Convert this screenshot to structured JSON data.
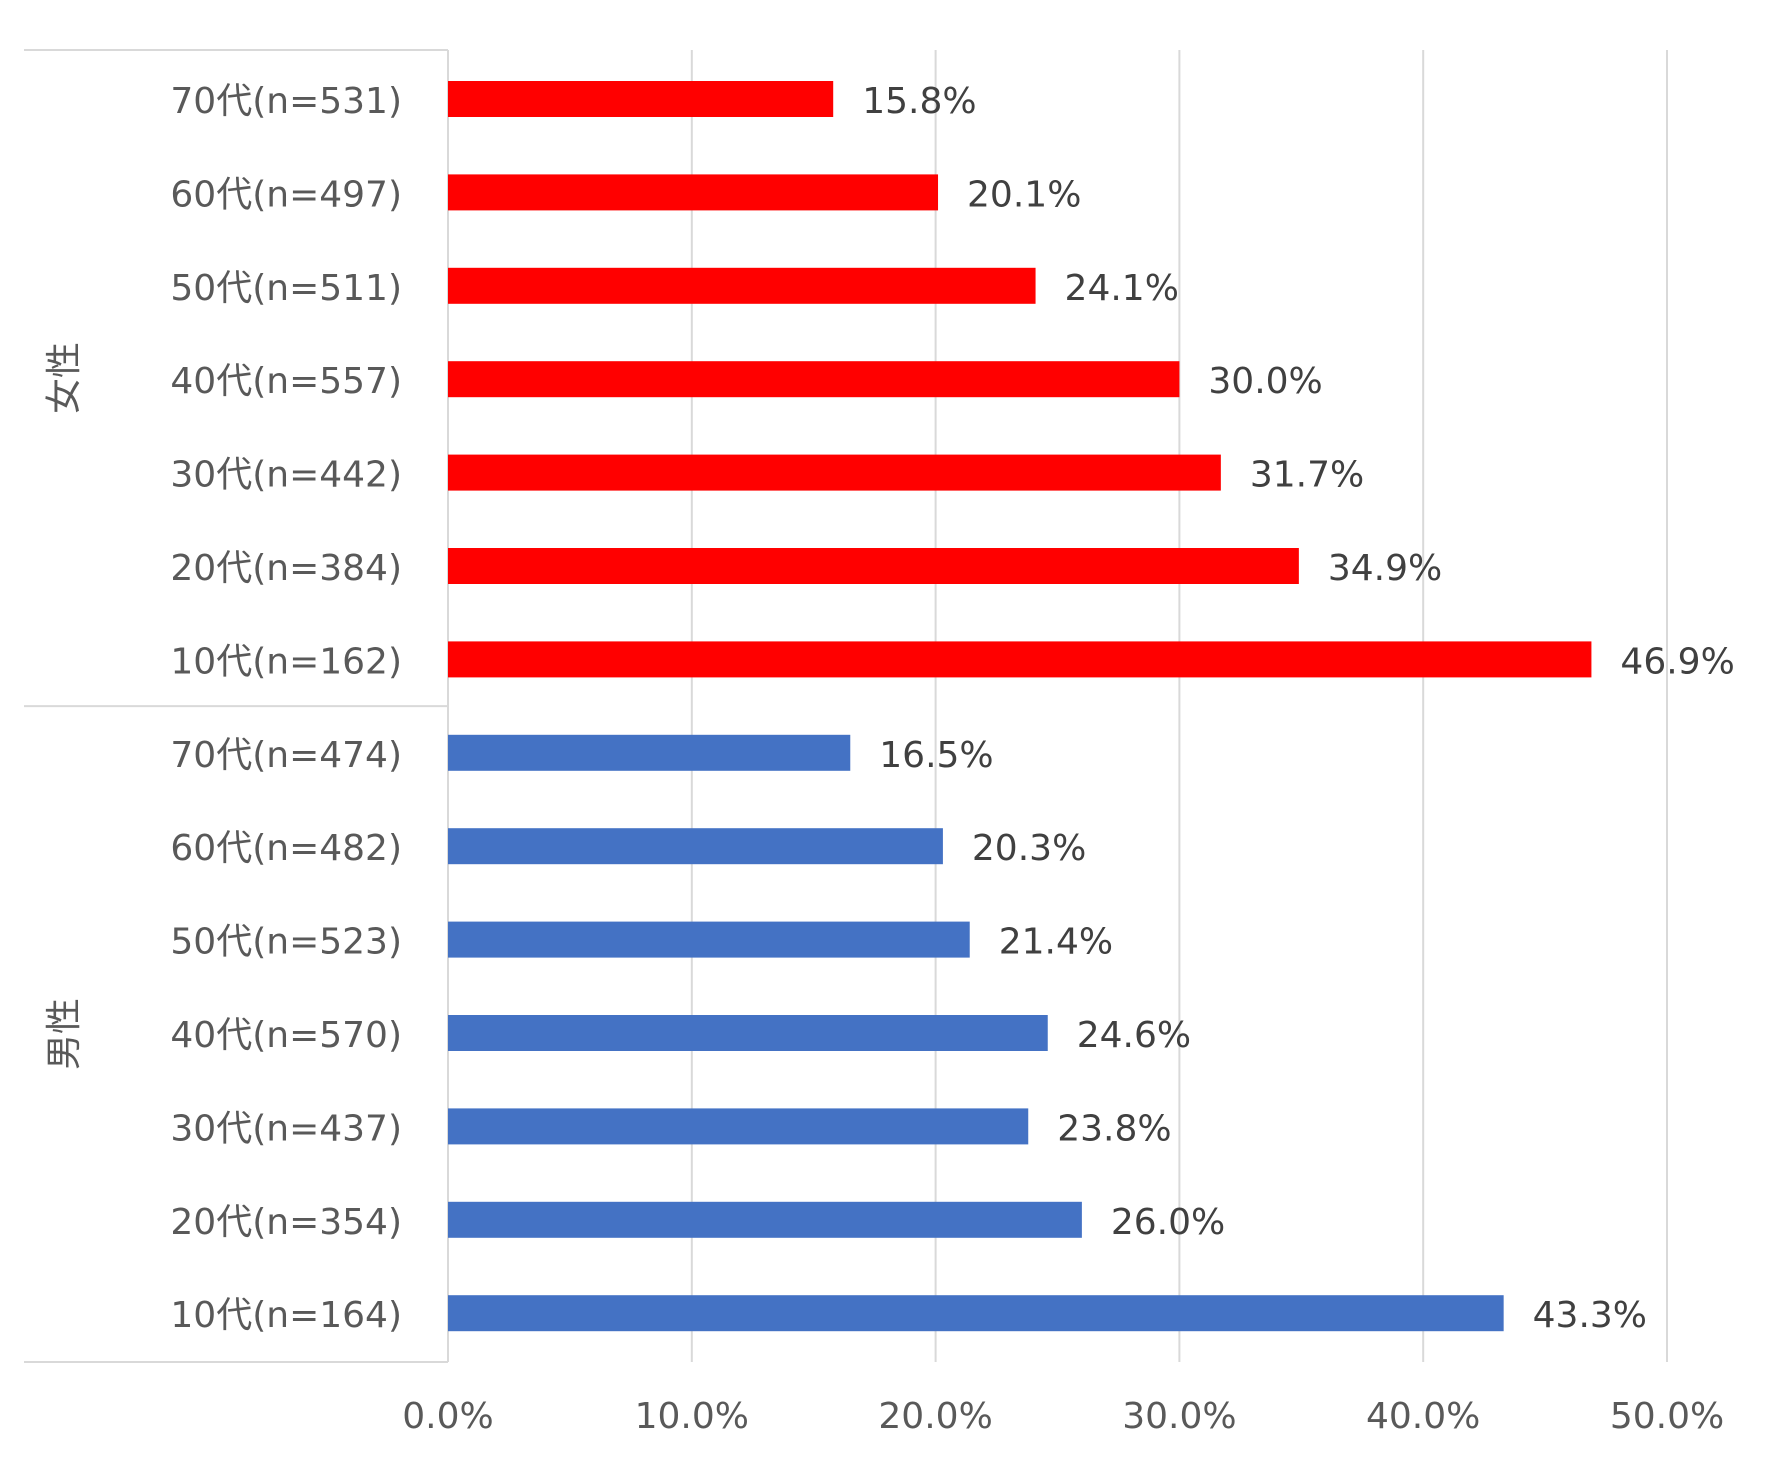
{
  "chart_data": {
    "type": "bar",
    "orientation": "horizontal",
    "title": "",
    "xlabel": "",
    "ylabel": "",
    "xlim": [
      0,
      50
    ],
    "x_ticks": [
      "0.0%",
      "10.0%",
      "20.0%",
      "30.0%",
      "40.0%",
      "50.0%"
    ],
    "grid": "vertical",
    "legend": "none",
    "groups": [
      {
        "name": "女性",
        "color": "#FF0000",
        "categories": [
          "70代(n=531)",
          "60代(n=497)",
          "50代(n=511)",
          "40代(n=557)",
          "30代(n=442)",
          "20代(n=384)",
          "10代(n=162)"
        ],
        "values": [
          15.8,
          20.1,
          24.1,
          30.0,
          31.7,
          34.9,
          46.9
        ],
        "labels": [
          "15.8%",
          "20.1%",
          "24.1%",
          "30.0%",
          "31.7%",
          "34.9%",
          "46.9%"
        ]
      },
      {
        "name": "男性",
        "color": "#4472C4",
        "categories": [
          "70代(n=474)",
          "60代(n=482)",
          "50代(n=523)",
          "40代(n=570)",
          "30代(n=437)",
          "20代(n=354)",
          "10代(n=164)"
        ],
        "values": [
          16.5,
          20.3,
          21.4,
          24.6,
          23.8,
          26.0,
          43.3
        ],
        "labels": [
          "16.5%",
          "20.3%",
          "21.4%",
          "24.6%",
          "23.8%",
          "26.0%",
          "43.3%"
        ]
      }
    ]
  }
}
